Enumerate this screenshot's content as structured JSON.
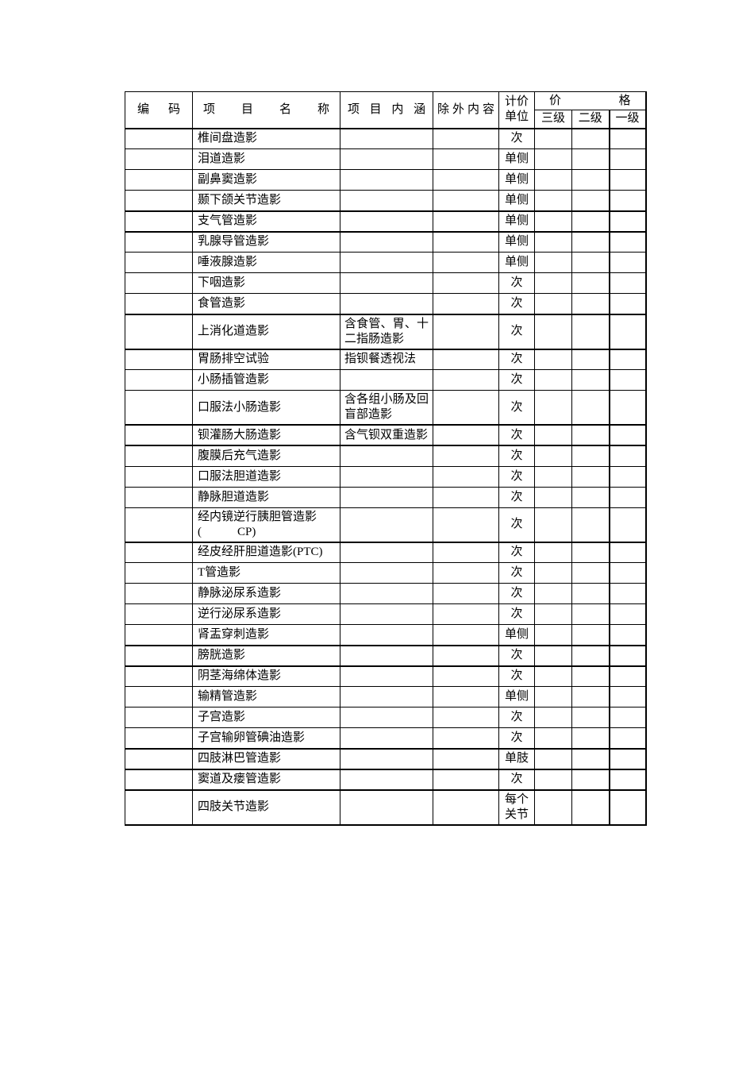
{
  "table": {
    "border_color": "#000000",
    "text_color": "#000000",
    "background_color": "#ffffff",
    "header": {
      "code": "编码",
      "name": "项目名称",
      "content": "项目内涵",
      "exclusion": "除外内容",
      "unit": "计价单位",
      "price": "价格",
      "price_levels": [
        "三级",
        "二级",
        "一级"
      ]
    },
    "rows": [
      {
        "code": "",
        "name": "椎间盘造影",
        "content": "",
        "exclusion": "",
        "unit": "次",
        "prices": [
          "",
          "",
          ""
        ],
        "thick_top": false
      },
      {
        "code": "",
        "name": "泪道造影",
        "content": "",
        "exclusion": "",
        "unit": "单侧",
        "prices": [
          "",
          "",
          ""
        ],
        "thick_top": false
      },
      {
        "code": "",
        "name": "副鼻窦造影",
        "content": "",
        "exclusion": "",
        "unit": "单侧",
        "prices": [
          "",
          "",
          ""
        ],
        "thick_top": false
      },
      {
        "code": "",
        "name": "颞下颌关节造影",
        "content": "",
        "exclusion": "",
        "unit": "单侧",
        "prices": [
          "",
          "",
          ""
        ],
        "thick_top": false
      },
      {
        "code": "",
        "name": "支气管造影",
        "content": "",
        "exclusion": "",
        "unit": "单侧",
        "prices": [
          "",
          "",
          ""
        ],
        "thick_top": true
      },
      {
        "code": "",
        "name": "乳腺导管造影",
        "content": "",
        "exclusion": "",
        "unit": "单侧",
        "prices": [
          "",
          "",
          ""
        ],
        "thick_top": true
      },
      {
        "code": "",
        "name": "唾液腺造影",
        "content": "",
        "exclusion": "",
        "unit": "单侧",
        "prices": [
          "",
          "",
          ""
        ],
        "thick_top": false
      },
      {
        "code": "",
        "name": "下咽造影",
        "content": "",
        "exclusion": "",
        "unit": "次",
        "prices": [
          "",
          "",
          ""
        ],
        "thick_top": false
      },
      {
        "code": "",
        "name": "食管造影",
        "content": "",
        "exclusion": "",
        "unit": "次",
        "prices": [
          "",
          "",
          ""
        ],
        "thick_top": false
      },
      {
        "code": "",
        "name": "上消化道造影",
        "content": "含食管、胃、十二指肠造影",
        "exclusion": "",
        "unit": "次",
        "prices": [
          "",
          "",
          ""
        ],
        "thick_top": true
      },
      {
        "code": "",
        "name": "胃肠排空试验",
        "content": "指钡餐透视法",
        "exclusion": "",
        "unit": "次",
        "prices": [
          "",
          "",
          ""
        ],
        "thick_top": true
      },
      {
        "code": "",
        "name": "小肠插管造影",
        "content": "",
        "exclusion": "",
        "unit": "次",
        "prices": [
          "",
          "",
          ""
        ],
        "thick_top": false
      },
      {
        "code": "",
        "name": "口服法小肠造影",
        "content": "含各组小肠及回盲部造影",
        "exclusion": "",
        "unit": "次",
        "prices": [
          "",
          "",
          ""
        ],
        "thick_top": false
      },
      {
        "code": "",
        "name": "钡灌肠大肠造影",
        "content": "含气钡双重造影",
        "exclusion": "",
        "unit": "次",
        "prices": [
          "",
          "",
          ""
        ],
        "thick_top": true
      },
      {
        "code": "",
        "name": "腹膜后充气造影",
        "content": "",
        "exclusion": "",
        "unit": "次",
        "prices": [
          "",
          "",
          ""
        ],
        "thick_top": true
      },
      {
        "code": "",
        "name": "口服法胆道造影",
        "content": "",
        "exclusion": "",
        "unit": "次",
        "prices": [
          "",
          "",
          ""
        ],
        "thick_top": false
      },
      {
        "code": "",
        "name": "静脉胆道造影",
        "content": "",
        "exclusion": "",
        "unit": "次",
        "prices": [
          "",
          "",
          ""
        ],
        "thick_top": false
      },
      {
        "code": "",
        "name": "经内镜逆行胰胆管造影\n(　　　CP)",
        "content": "",
        "exclusion": "",
        "unit": "次",
        "prices": [
          "",
          "",
          ""
        ],
        "thick_top": false
      },
      {
        "code": "",
        "name": "经皮经肝胆道造影(PTC)",
        "content": "",
        "exclusion": "",
        "unit": "次",
        "prices": [
          "",
          "",
          ""
        ],
        "thick_top": true
      },
      {
        "code": "",
        "name": "T管造影",
        "content": "",
        "exclusion": "",
        "unit": "次",
        "prices": [
          "",
          "",
          ""
        ],
        "thick_top": false
      },
      {
        "code": "",
        "name": "静脉泌尿系造影",
        "content": "",
        "exclusion": "",
        "unit": "次",
        "prices": [
          "",
          "",
          ""
        ],
        "thick_top": false
      },
      {
        "code": "",
        "name": "逆行泌尿系造影",
        "content": "",
        "exclusion": "",
        "unit": "次",
        "prices": [
          "",
          "",
          ""
        ],
        "thick_top": false
      },
      {
        "code": "",
        "name": "肾盂穿刺造影",
        "content": "",
        "exclusion": "",
        "unit": "单侧",
        "prices": [
          "",
          "",
          ""
        ],
        "thick_top": false
      },
      {
        "code": "",
        "name": "膀胱造影",
        "content": "",
        "exclusion": "",
        "unit": "次",
        "prices": [
          "",
          "",
          ""
        ],
        "thick_top": true
      },
      {
        "code": "",
        "name": "阴茎海绵体造影",
        "content": "",
        "exclusion": "",
        "unit": "次",
        "prices": [
          "",
          "",
          ""
        ],
        "thick_top": true
      },
      {
        "code": "",
        "name": "输精管造影",
        "content": "",
        "exclusion": "",
        "unit": "单侧",
        "prices": [
          "",
          "",
          ""
        ],
        "thick_top": false
      },
      {
        "code": "",
        "name": "子宫造影",
        "content": "",
        "exclusion": "",
        "unit": "次",
        "prices": [
          "",
          "",
          ""
        ],
        "thick_top": false
      },
      {
        "code": "",
        "name": "子宫输卵管碘油造影",
        "content": "",
        "exclusion": "",
        "unit": "次",
        "prices": [
          "",
          "",
          ""
        ],
        "thick_top": false
      },
      {
        "code": "",
        "name": "四肢淋巴管造影",
        "content": "",
        "exclusion": "",
        "unit": "单肢",
        "prices": [
          "",
          "",
          ""
        ],
        "thick_top": true
      },
      {
        "code": "",
        "name": "窦道及瘘管造影",
        "content": "",
        "exclusion": "",
        "unit": "次",
        "prices": [
          "",
          "",
          ""
        ],
        "thick_top": true
      },
      {
        "code": "",
        "name": "四肢关节造影",
        "content": "",
        "exclusion": "",
        "unit": "每个关节",
        "prices": [
          "",
          "",
          ""
        ],
        "thick_top": true
      }
    ]
  }
}
